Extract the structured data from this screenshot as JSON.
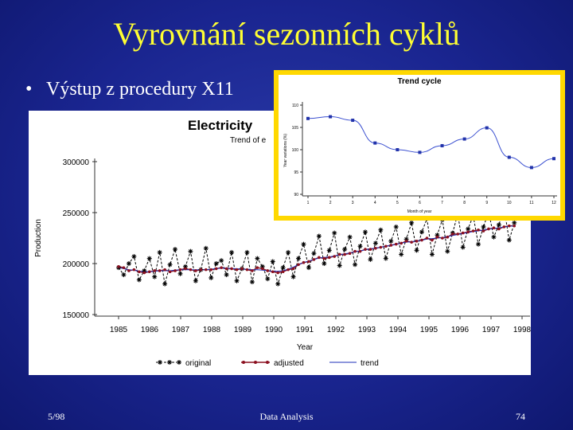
{
  "slide": {
    "title": "Vyrovnání sezonních cyklů",
    "bullet_symbol": "•",
    "bullet": "Výstup z procedury X11",
    "footer_left": "5/98",
    "footer_center": "Data Analysis",
    "page_number": "74",
    "accent_color": "#ffff33",
    "inset_border_color": "#ffd800"
  },
  "chart_data": [
    {
      "type": "line",
      "title": "Electricity",
      "subtitle": "Trend of e",
      "xlabel": "Year",
      "ylabel": "Production",
      "x_ticks": [
        "1985",
        "1986",
        "1987",
        "1988",
        "1989",
        "1990",
        "1991",
        "1992",
        "1993",
        "1994",
        "1995",
        "1996",
        "1997",
        "1998"
      ],
      "y_ticks": [
        "150000",
        "200000",
        "250000",
        "300000"
      ],
      "xlim": [
        1985,
        1998
      ],
      "ylim": [
        150000,
        300000
      ],
      "legend": [
        {
          "label": "original",
          "color": "#000000",
          "marker": "star"
        },
        {
          "label": "adjusted",
          "color": "#8b1020",
          "marker": "dot"
        },
        {
          "label": "trend",
          "color": "#1c2fb8",
          "marker": "none"
        }
      ],
      "legend_position": "bottom",
      "start_year": 1985,
      "end_year": 1997.75,
      "series": [
        {
          "name": "original",
          "values": [
            196000,
            189000,
            200000,
            207000,
            184000,
            193000,
            205000,
            187000,
            211000,
            180000,
            199000,
            214000,
            190000,
            197000,
            212000,
            183000,
            194000,
            215000,
            186000,
            200000,
            203000,
            189000,
            211000,
            183000,
            195000,
            211000,
            182000,
            205000,
            197000,
            185000,
            202000,
            180000,
            196000,
            211000,
            187000,
            205000,
            219000,
            196000,
            210000,
            227000,
            200000,
            213000,
            230000,
            198000,
            214000,
            226000,
            199000,
            217000,
            231000,
            204000,
            220000,
            233000,
            205000,
            222000,
            236000,
            209000,
            224000,
            240000,
            213000,
            231000,
            244000,
            209000,
            228000,
            243000,
            212000,
            230000,
            249000,
            216000,
            234000,
            247000,
            219000,
            236000,
            251000,
            226000,
            238000,
            255000,
            223000,
            240000
          ]
        },
        {
          "name": "adjusted",
          "values": [
            197000,
            196000,
            193000,
            194000,
            192000,
            191000,
            192000,
            193000,
            193000,
            194000,
            192000,
            193000,
            194000,
            195000,
            194000,
            193000,
            194000,
            194000,
            194000,
            195000,
            196000,
            195000,
            195000,
            194000,
            195000,
            194000,
            193000,
            196000,
            195000,
            193000,
            192000,
            191000,
            192000,
            194000,
            195000,
            199000,
            201000,
            202000,
            204000,
            206000,
            205000,
            206000,
            207000,
            209000,
            209000,
            210000,
            212000,
            212000,
            214000,
            214000,
            215000,
            216000,
            217000,
            218000,
            219000,
            220000,
            222000,
            221000,
            222000,
            223000,
            225000,
            223000,
            226000,
            225000,
            226000,
            229000,
            229000,
            230000,
            231000,
            232000,
            233000,
            232000,
            234000,
            235000,
            234000,
            236000,
            237000,
            237000
          ]
        },
        {
          "name": "trend",
          "values": [
            196000,
            195000,
            194000,
            193500,
            192500,
            192000,
            192000,
            192500,
            193000,
            193000,
            193000,
            193500,
            194000,
            194000,
            194000,
            194000,
            194000,
            194000,
            194500,
            195000,
            195500,
            195500,
            195000,
            195000,
            194500,
            194500,
            194000,
            194000,
            193500,
            193000,
            192500,
            192500,
            193000,
            194500,
            196500,
            199000,
            201000,
            202500,
            204000,
            205500,
            206000,
            206500,
            207500,
            208500,
            209500,
            210500,
            211500,
            212500,
            213500,
            214500,
            215000,
            216000,
            217000,
            218000,
            219000,
            220000,
            221000,
            221500,
            222000,
            223000,
            224000,
            224500,
            225000,
            225500,
            226500,
            227500,
            228500,
            229500,
            230500,
            231500,
            232000,
            233000,
            234000,
            234500,
            235000,
            236000,
            236500,
            237000
          ]
        }
      ]
    },
    {
      "type": "line",
      "title": "Trend cycle",
      "xlabel": "Month of year",
      "ylabel": "Year variations (%)",
      "categories": [
        "1",
        "2",
        "3",
        "4",
        "5",
        "6",
        "7",
        "8",
        "9",
        "10",
        "11",
        "12"
      ],
      "y_ticks": [
        "90",
        "95",
        "100",
        "105",
        "110"
      ],
      "ylim": [
        90,
        110
      ],
      "series": [
        {
          "values": [
            107,
            107.4,
            106.6,
            101.5,
            100,
            99.4,
            100.9,
            102.4,
            104.9,
            98.3,
            96,
            98
          ]
        }
      ]
    }
  ]
}
